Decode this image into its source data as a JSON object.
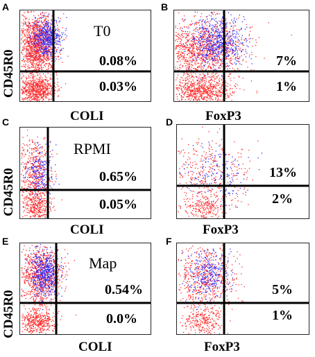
{
  "panels": [
    {
      "letter": "A",
      "y_label": "CD45R0",
      "x_label": "COLI",
      "condition": "T0",
      "upper_pct": "0.08%",
      "lower_pct": "0.03%"
    },
    {
      "letter": "B",
      "y_label": "",
      "x_label": "FoxP3",
      "condition": "",
      "upper_pct": "7%",
      "lower_pct": "1%"
    },
    {
      "letter": "C",
      "y_label": "CD45R0",
      "x_label": "COLI",
      "condition": "RPMI",
      "upper_pct": "0.65%",
      "lower_pct": "0.05%"
    },
    {
      "letter": "D",
      "y_label": "",
      "x_label": "FoxP3",
      "condition": "",
      "upper_pct": "13%",
      "lower_pct": "2%"
    },
    {
      "letter": "E",
      "y_label": "CD45R0",
      "x_label": "COLI",
      "condition": "Map",
      "upper_pct": "0.54%",
      "lower_pct": "0.0%"
    },
    {
      "letter": "F",
      "y_label": "",
      "x_label": "FoxP3",
      "condition": "",
      "upper_pct": "5%",
      "lower_pct": "1%"
    }
  ],
  "colors": {
    "dots_red": "#ff2a2a",
    "dots_blue": "#2a2aff",
    "quadrant_lines": "#000000"
  }
}
